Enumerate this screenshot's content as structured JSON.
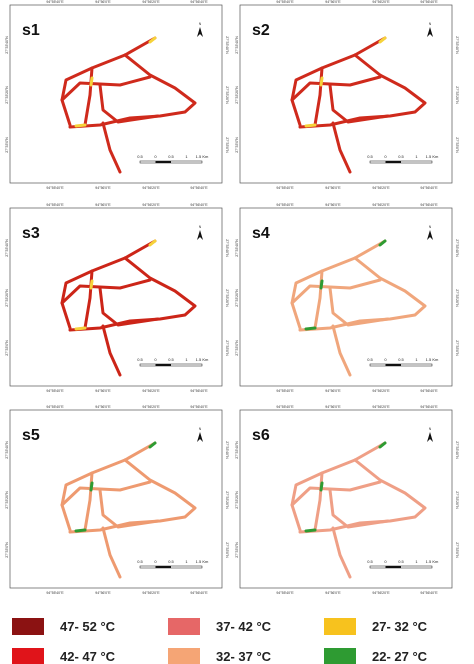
{
  "panels": [
    {
      "title": "s1",
      "color": "#cf2a1c",
      "accent": "#f6d23a"
    },
    {
      "title": "s2",
      "color": "#cf2a1c",
      "accent": "#f6d23a"
    },
    {
      "title": "s3",
      "color": "#cc2518",
      "accent": "#f6d23a"
    },
    {
      "title": "s4",
      "color": "#f0a67c",
      "accent": "#2e9b32"
    },
    {
      "title": "s5",
      "color": "#ee9a70",
      "accent": "#2e9b32"
    },
    {
      "title": "s6",
      "color": "#ef9f86",
      "accent": "#2e9b32"
    }
  ],
  "graticule": {
    "longitudes": [
      "94°55'40\"E",
      "94°56'0\"E",
      "94°56'20\"E",
      "94°56'40\"E"
    ],
    "latitudes": [
      "27°33'40\"N",
      "27°33'20\"N",
      "27°33'0\"N"
    ]
  },
  "scale_bar": [
    "0.5",
    "0",
    "0.5",
    "1",
    "1.5 Km"
  ],
  "north": "N",
  "legend": [
    {
      "label": "47- 52 °C",
      "color": "#8b1212"
    },
    {
      "label": "42- 47 °C",
      "color": "#e0141a"
    },
    {
      "label": "37- 42 °C",
      "color": "#e66767"
    },
    {
      "label": "32- 37 °C",
      "color": "#f5a575"
    },
    {
      "label": "27- 32 °C",
      "color": "#f7c21e"
    },
    {
      "label": "22- 27 °C",
      "color": "#2e9b32"
    }
  ]
}
